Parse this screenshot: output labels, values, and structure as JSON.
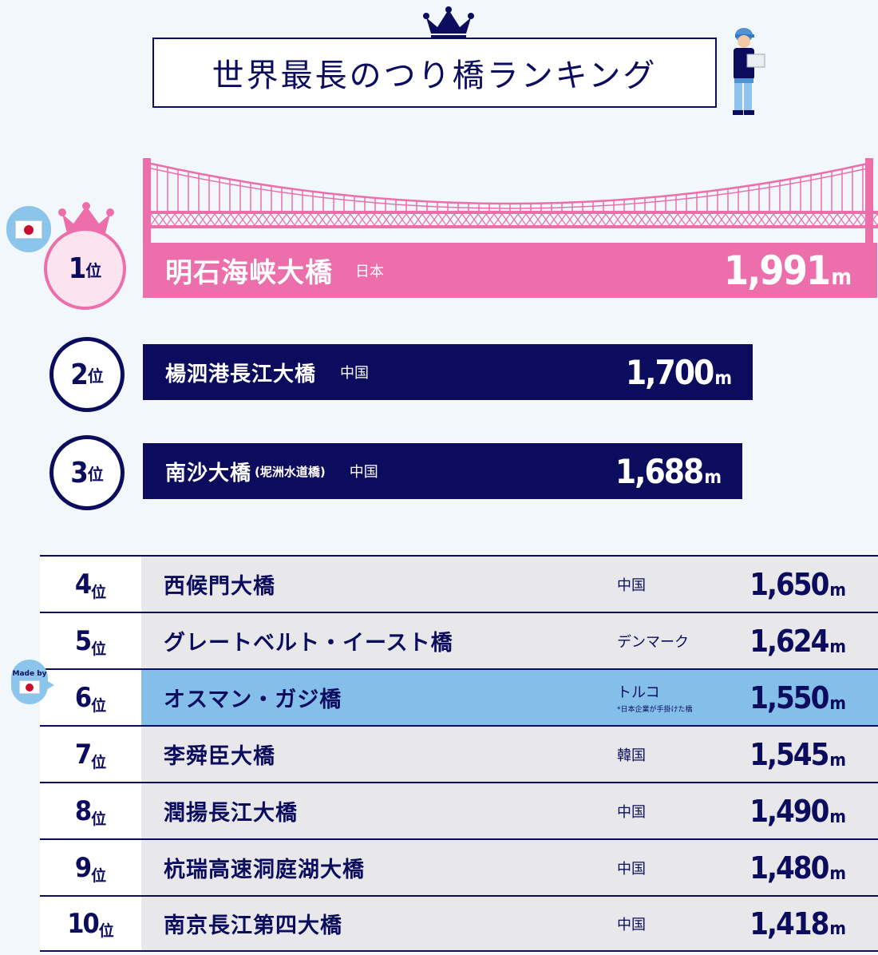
{
  "title": "世界最長のつり橋ランキング",
  "rank_suffix": "位",
  "unit": "m",
  "icons": {
    "title_crown": "crown-icon",
    "top_crown": "crown-icon",
    "worker": "engineer-illustration",
    "bridge": "suspension-bridge-illustration",
    "flag": "japan-flag-icon"
  },
  "colors": {
    "navy": "#0c0c5e",
    "pink": "#ec6fab",
    "highlight": "#84bfea",
    "row_bg": "#e8e8ea",
    "background": "#f1f7fb"
  },
  "made_by_label": "Made by",
  "chart_data": {
    "type": "bar",
    "categories": [
      "明石海峡大橋",
      "楊泗港長江大橋",
      "南沙大橋",
      "西候門大橋",
      "グレートベルト・イースト橋",
      "オスマン・ガジ橋",
      "李舜臣大橋",
      "潤揚長江大橋",
      "杭瑞高速洞庭湖大橋",
      "南京長江第四大橋"
    ],
    "values": [
      1991,
      1700,
      1688,
      1650,
      1624,
      1550,
      1545,
      1490,
      1480,
      1418
    ],
    "title": "世界最長のつり橋ランキング"
  },
  "top": [
    {
      "rank": "1",
      "name": "明石海峡大橋",
      "alt": "",
      "country": "日本",
      "length": "1,991"
    },
    {
      "rank": "2",
      "name": "楊泗港長江大橋",
      "alt": "",
      "country": "中国",
      "length": "1,700"
    },
    {
      "rank": "3",
      "name": "南沙大橋",
      "alt": "(坭洲水道橋)",
      "country": "中国",
      "length": "1,688"
    }
  ],
  "rows": [
    {
      "rank": "4",
      "name": "西候門大橋",
      "country": "中国",
      "note": "",
      "length": "1,650"
    },
    {
      "rank": "5",
      "name": "グレートベルト・イースト橋",
      "country": "デンマーク",
      "note": "",
      "length": "1,624"
    },
    {
      "rank": "6",
      "name": "オスマン・ガジ橋",
      "country": "トルコ",
      "note": "*日本企業が手掛けた橋",
      "length": "1,550"
    },
    {
      "rank": "7",
      "name": "李舜臣大橋",
      "country": "韓国",
      "note": "",
      "length": "1,545"
    },
    {
      "rank": "8",
      "name": "潤揚長江大橋",
      "country": "中国",
      "note": "",
      "length": "1,490"
    },
    {
      "rank": "9",
      "name": "杭瑞高速洞庭湖大橋",
      "country": "中国",
      "note": "",
      "length": "1,480"
    },
    {
      "rank": "10",
      "name": "南京長江第四大橋",
      "country": "中国",
      "note": "",
      "length": "1,418"
    }
  ]
}
